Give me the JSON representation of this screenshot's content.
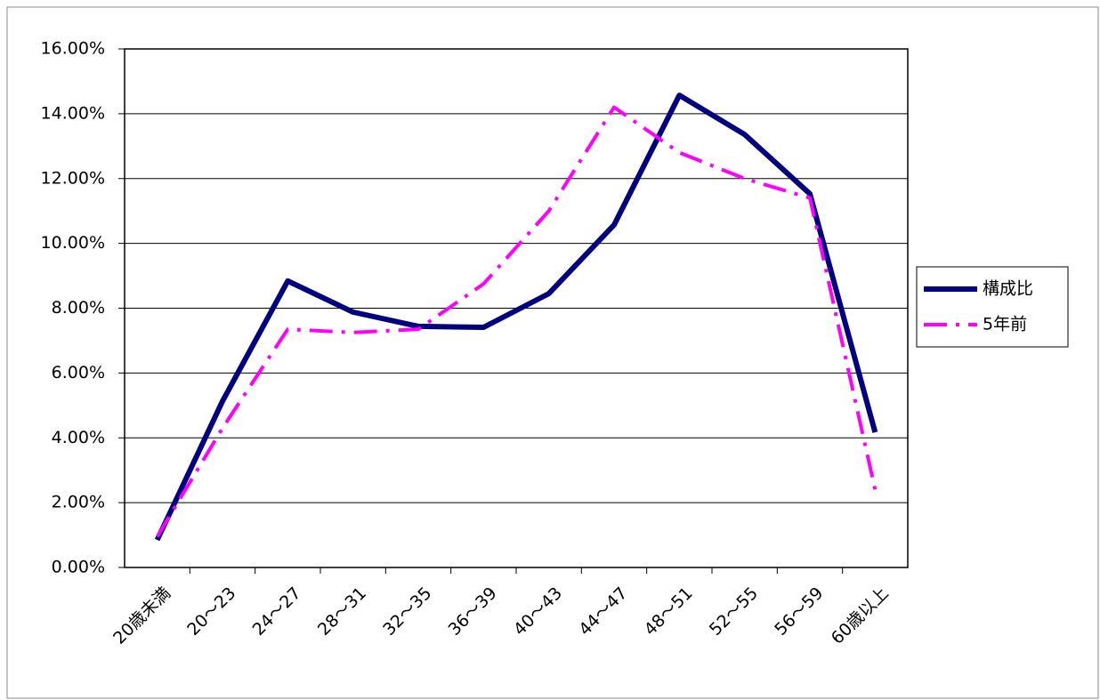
{
  "chart_data": {
    "type": "line",
    "categories": [
      "20歳未満",
      "20～23",
      "24～27",
      "28～31",
      "32～35",
      "36～39",
      "40～43",
      "44～47",
      "48～51",
      "52～55",
      "56～59",
      "60歳以上"
    ],
    "series": [
      {
        "name": "構成比",
        "color": "#000080",
        "values": [
          0.85,
          5.13,
          8.84,
          7.88,
          7.44,
          7.41,
          8.45,
          10.57,
          14.57,
          13.36,
          11.53,
          4.17
        ]
      },
      {
        "name": "5年前",
        "color": "#ff00ff",
        "values": [
          0.95,
          4.3,
          7.35,
          7.25,
          7.35,
          8.75,
          11.0,
          14.2,
          12.8,
          12.0,
          11.4,
          2.4
        ]
      }
    ],
    "ylim": [
      0,
      16
    ],
    "yticks": [
      {
        "value": 0,
        "label": "0.00%"
      },
      {
        "value": 2,
        "label": "2.00%"
      },
      {
        "value": 4,
        "label": "4.00%"
      },
      {
        "value": 6,
        "label": "6.00%"
      },
      {
        "value": 8,
        "label": "8.00%"
      },
      {
        "value": 10,
        "label": "10.00%"
      },
      {
        "value": 12,
        "label": "12.00%"
      },
      {
        "value": 14,
        "label": "14.00%"
      },
      {
        "value": 16,
        "label": "16.00%"
      }
    ],
    "grid": true,
    "legend": "right"
  }
}
